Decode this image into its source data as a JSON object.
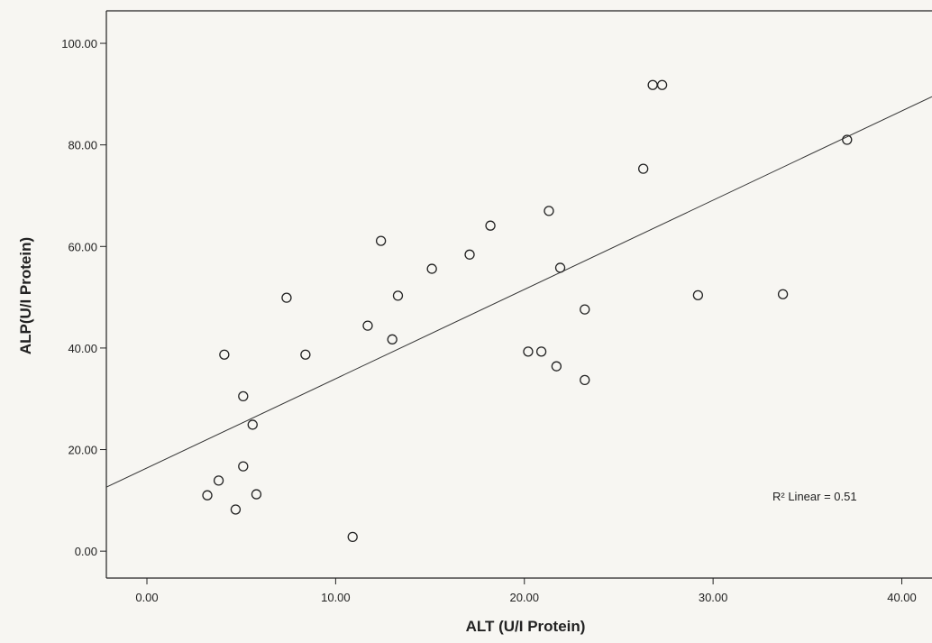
{
  "chart_data": {
    "type": "scatter",
    "x_label": "ALT (U/I Protein)",
    "y_label": "ALP(U/I Protein)",
    "annotation": "R² Linear = 0.51",
    "color": "#222222",
    "x": [
      3.2,
      3.8,
      4.1,
      4.7,
      5.1,
      5.1,
      5.6,
      5.8,
      7.4,
      8.4,
      10.9,
      11.7,
      12.4,
      13.0,
      13.3,
      15.1,
      17.1,
      18.2,
      20.2,
      20.9,
      21.3,
      21.7,
      21.9,
      23.2,
      23.2,
      26.3,
      26.8,
      27.3,
      29.2,
      33.7,
      37.1
    ],
    "values": [
      11.0,
      13.9,
      38.7,
      8.2,
      30.5,
      16.7,
      24.9,
      11.2,
      49.9,
      38.7,
      2.8,
      44.4,
      61.1,
      41.7,
      50.3,
      55.6,
      58.4,
      64.1,
      39.3,
      39.3,
      67.0,
      36.4,
      55.8,
      47.6,
      33.7,
      75.3,
      91.8,
      91.8,
      50.4,
      50.6,
      81.0
    ],
    "trendline": {
      "x": [
        -2.15,
        41.6
      ],
      "y": [
        12.6,
        89.5
      ]
    },
    "xlim": [
      -2.15,
      41.6
    ],
    "ylim": [
      -5.3,
      106.4
    ],
    "xticks": [
      {
        "value": 0,
        "label": "0.00"
      },
      {
        "value": 10,
        "label": "10.00"
      },
      {
        "value": 20,
        "label": "20.00"
      },
      {
        "value": 30,
        "label": "30.00"
      },
      {
        "value": 40,
        "label": "40.00"
      }
    ],
    "yticks": [
      {
        "value": 0,
        "label": "0.00"
      },
      {
        "value": 20,
        "label": "20.00"
      },
      {
        "value": 40,
        "label": "40.00"
      },
      {
        "value": 60,
        "label": "60.00"
      },
      {
        "value": 80,
        "label": "80.00"
      },
      {
        "value": 100,
        "label": "100.00"
      }
    ]
  }
}
